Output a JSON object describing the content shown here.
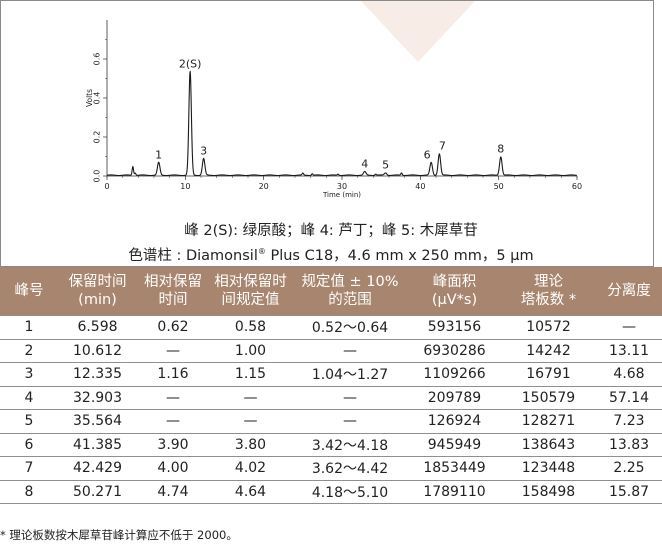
{
  "chart_data": {
    "type": "line",
    "xlabel": "Time (min)",
    "ylabel": "Volts",
    "xlim": [
      0,
      60
    ],
    "ylim": [
      0,
      0.8
    ],
    "x_ticks": [
      0,
      10,
      20,
      30,
      40,
      50,
      60
    ],
    "y_ticks": [
      "0.0",
      "0.2",
      "0.4",
      "0.6"
    ],
    "line_color": "#1a1a1a",
    "peaks": [
      {
        "label": "1",
        "time": 6.598,
        "height": 0.065
      },
      {
        "label": "2(S)",
        "time": 10.612,
        "height": 0.53
      },
      {
        "label": "3",
        "time": 12.335,
        "height": 0.085
      },
      {
        "label": "4",
        "time": 32.903,
        "height": 0.018
      },
      {
        "label": "5",
        "time": 35.564,
        "height": 0.012
      },
      {
        "label": "6",
        "time": 41.385,
        "height": 0.065
      },
      {
        "label": "7",
        "time": 42.429,
        "height": 0.11
      },
      {
        "label": "8",
        "time": 50.271,
        "height": 0.095
      }
    ],
    "minor_peaks": [
      {
        "time": 3.3,
        "height": 0.045
      },
      {
        "time": 3.6,
        "height": 0.012
      },
      {
        "time": 25.0,
        "height": 0.01
      },
      {
        "time": 26.2,
        "height": 0.008
      },
      {
        "time": 29.5,
        "height": 0.006
      },
      {
        "time": 34.3,
        "height": 0.006
      },
      {
        "time": 37.6,
        "height": 0.012
      }
    ]
  },
  "caption_line1": "峰 2(S): 绿原酸；峰 4: 芦丁；峰 5: 木犀草苷",
  "caption_line2_prefix": "色谱柱 : Diamonsil",
  "caption_line2_sup": "®",
  "caption_line2_suffix": " Plus C18，4.6 mm x 250 mm，5 μm",
  "table": {
    "header_color": "#a8856e",
    "headers": [
      [
        "峰号"
      ],
      [
        "保留时间",
        "(min)"
      ],
      [
        "相对保留",
        "时间"
      ],
      [
        "相对保留时",
        "间规定值"
      ],
      [
        "规定值 ± 10%",
        "的范围"
      ],
      [
        "峰面积",
        "(μV*s)"
      ],
      [
        "理论",
        "塔板数 *"
      ],
      [
        "分离度"
      ]
    ],
    "rows": [
      [
        "1",
        "6.598",
        "0.62",
        "0.58",
        "0.52～0.64",
        "593156",
        "10572",
        "—"
      ],
      [
        "2",
        "10.612",
        "—",
        "1.00",
        "—",
        "6930286",
        "14242",
        "13.11"
      ],
      [
        "3",
        "12.335",
        "1.16",
        "1.15",
        "1.04～1.27",
        "1109266",
        "16791",
        "4.68"
      ],
      [
        "4",
        "32.903",
        "—",
        "—",
        "—",
        "209789",
        "150579",
        "57.14"
      ],
      [
        "5",
        "35.564",
        "—",
        "—",
        "—",
        "126924",
        "128271",
        "7.23"
      ],
      [
        "6",
        "41.385",
        "3.90",
        "3.80",
        "3.42～4.18",
        "945949",
        "138643",
        "13.83"
      ],
      [
        "7",
        "42.429",
        "4.00",
        "4.02",
        "3.62～4.42",
        "1853449",
        "123448",
        "2.25"
      ],
      [
        "8",
        "50.271",
        "4.74",
        "4.64",
        "4.18～5.10",
        "1789110",
        "158498",
        "15.87"
      ]
    ]
  },
  "footnote": "* 理论板数按木犀草苷峰计算应不低于 2000。"
}
